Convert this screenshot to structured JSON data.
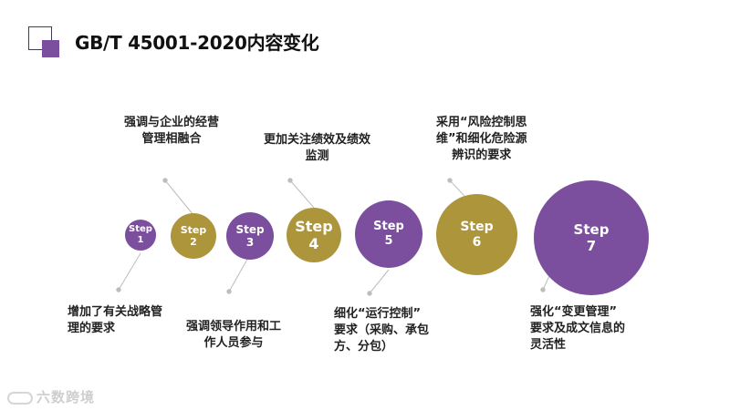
{
  "title": "GB/T 45001-2020内容变化",
  "steps": [
    {
      "word": "Step",
      "num": "1",
      "color": "#7b4f9d"
    },
    {
      "word": "Step",
      "num": "2",
      "color": "#ad953c"
    },
    {
      "word": "Step",
      "num": "3",
      "color": "#7b4f9d"
    },
    {
      "word": "Step",
      "num": "4",
      "color": "#ad953c"
    },
    {
      "word": "Step",
      "num": "5",
      "color": "#7b4f9d"
    },
    {
      "word": "Step",
      "num": "6",
      "color": "#ad953c"
    },
    {
      "word": "Step",
      "num": "7",
      "color": "#7b4f9d"
    }
  ],
  "labels": [
    [
      "增加了有关战略管",
      "理的要求"
    ],
    [
      "强调与企业的经营",
      "管理相融合"
    ],
    [
      "强调领导作用和工",
      "作人员参与"
    ],
    [
      "更加关注绩效及绩效",
      "监测"
    ],
    [
      "细化“运行控制”",
      "要求（采购、承包",
      "方、分包）"
    ],
    [
      "采用“风险控制思",
      "维”和细化危险源",
      "辨识的要求"
    ],
    [
      "强化“变更管理”",
      "要求及成文信息的",
      "灵活性"
    ]
  ],
  "watermark": "六数跨境",
  "colors": {
    "purple": "#7b4f9d",
    "gold": "#ad953c"
  }
}
